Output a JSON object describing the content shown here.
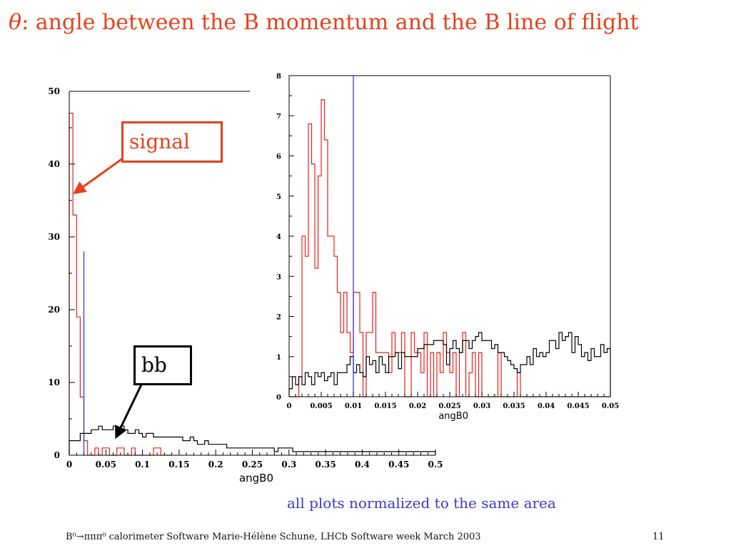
{
  "slide": {
    "title_symbol": "θ",
    "title_text": ": angle between the B momentum and the B line of flight",
    "callout_signal": "signal",
    "callout_bb": "bb",
    "note": "all plots normalized to the same area",
    "footer": "B⁰→πππ⁰ calorimeter Software Marie-Hélène Schune, LHCb Software week March 2003",
    "page_number": "11"
  },
  "colors": {
    "signal": "#e8201c",
    "background": "#000000",
    "cut": "#2a2ad8",
    "title": "#e8401c",
    "note": "#3a3ad0"
  },
  "chart_data": [
    {
      "type": "histogram",
      "xlabel": "angB0",
      "xlim": [
        0,
        0.5
      ],
      "ylim": [
        0,
        50
      ],
      "xticks": [
        "0",
        "0.05",
        "0.1",
        "0.15",
        "0.2",
        "0.25",
        "0.3",
        "0.35",
        "0.4",
        "0.45",
        "0.5"
      ],
      "yticks": [
        "0",
        "10",
        "20",
        "30",
        "40",
        "50"
      ],
      "cut_x": 0.02,
      "cut_top": 28,
      "bin_width": 0.005,
      "series": [
        {
          "name": "signal",
          "values": [
            47,
            33,
            19,
            8,
            2,
            0,
            0,
            1,
            0,
            1,
            1,
            0,
            0,
            1,
            1,
            0,
            0,
            1,
            0,
            0,
            0,
            0,
            0,
            1,
            1,
            0,
            0,
            0
          ]
        },
        {
          "name": "bb",
          "values": [
            2,
            2,
            2,
            3,
            3,
            3,
            3.5,
            3.5,
            4,
            3.5,
            3.5,
            3.5,
            4,
            3.5,
            4,
            3.5,
            3,
            3,
            3.5,
            3,
            2.5,
            3,
            3,
            2.5,
            2.5,
            2.5,
            2.5,
            2.5,
            2.5,
            2.5,
            2.5,
            2,
            2,
            2.5,
            2,
            1.5,
            1.5,
            2,
            1.5,
            1.5,
            1.5,
            1.5,
            1.5,
            1,
            1,
            1,
            1,
            1,
            1,
            1,
            1,
            1,
            1,
            1,
            1,
            1,
            0.5,
            1,
            1,
            1,
            1,
            0.5,
            0.5,
            0.5,
            0.5,
            0.5,
            0.5,
            0.5,
            0.5,
            0.5,
            0.5,
            0.5,
            0.5,
            0.5,
            0.5,
            0.5,
            0.5,
            0.5,
            0.5,
            0.5,
            0.5,
            0.5,
            0.5,
            0.5,
            0.5,
            0.5,
            0.5,
            0.5,
            0.5,
            0.5,
            0.5,
            0.5,
            0.5,
            0.5,
            0.5,
            0.5,
            0.5,
            0.5,
            0.5,
            0.5
          ]
        }
      ]
    },
    {
      "type": "histogram",
      "xlabel": "angB0",
      "xlim": [
        0,
        0.05
      ],
      "ylim": [
        0,
        8
      ],
      "xticks": [
        "0",
        "0.005",
        "0.01",
        "0.015",
        "0.02",
        "0.025",
        "0.03",
        "0.035",
        "0.04",
        "0.045",
        "0.05"
      ],
      "yticks": [
        "0",
        "1",
        "2",
        "3",
        "4",
        "5",
        "6",
        "7",
        "8"
      ],
      "cut_x": 0.01,
      "bin_width": 0.0005,
      "series": [
        {
          "name": "signal",
          "values": [
            0,
            0,
            0,
            0.5,
            4,
            3.5,
            6.8,
            5.8,
            3.2,
            5.5,
            7.4,
            6.4,
            4,
            4,
            3.5,
            2.6,
            1.6,
            2.6,
            1.6,
            1.1,
            2.6,
            2.6,
            1.6,
            0,
            1.6,
            1.6,
            2.6,
            1.1,
            1.1,
            1.1,
            1.1,
            0.6,
            1.6,
            1.1,
            1.1,
            1.6,
            0,
            0,
            1.6,
            1.1,
            1.1,
            0.6,
            1.6,
            0,
            1.1,
            0,
            1.1,
            0.6,
            1.6,
            1.1,
            0.6,
            1.1,
            0,
            1.1,
            1.6,
            0,
            0.6,
            1.1,
            0,
            1.1,
            0,
            0,
            0,
            0,
            0,
            1.1,
            0,
            0,
            0,
            0,
            0,
            0.6,
            0,
            0,
            0,
            0,
            0,
            0,
            0,
            0,
            0,
            0,
            0,
            0,
            0,
            0,
            0,
            0,
            0,
            0,
            0,
            0,
            0,
            0,
            0,
            0,
            0,
            0,
            0,
            0
          ]
        },
        {
          "name": "bb",
          "values": [
            0.2,
            0.5,
            0.3,
            0.5,
            0.3,
            0.6,
            0.5,
            0.3,
            0.6,
            0.5,
            0.6,
            0.4,
            0.5,
            0.6,
            0.3,
            0.6,
            0.6,
            0.6,
            0.8,
            1.0,
            0.6,
            0.8,
            0.6,
            0.5,
            1.0,
            0.8,
            0.9,
            0.6,
            1.0,
            0.8,
            0.6,
            1.0,
            1.0,
            1.1,
            0.7,
            1.1,
            1.0,
            1.0,
            1.0,
            1.0,
            1.2,
            1.2,
            1.3,
            1.3,
            1.3,
            1.4,
            1.4,
            1.4,
            1.3,
            0.8,
            1.2,
            1.4,
            1.2,
            1.1,
            1.4,
            1.4,
            1.2,
            1.4,
            1.5,
            1.6,
            1.4,
            1.4,
            1.4,
            1.2,
            1.3,
            1.1,
            1.1,
            1.0,
            0.9,
            0.8,
            0.7,
            0.6,
            0.8,
            0.8,
            1.0,
            0.8,
            1.2,
            1.0,
            1.1,
            1.0,
            1.1,
            1.4,
            1.4,
            1.2,
            1.6,
            1.4,
            1.5,
            1.6,
            1.1,
            1.5,
            1.3,
            1.0,
            1.1,
            0.9,
            1.2,
            1.0,
            1.0,
            1.3,
            1.1,
            1.2
          ]
        }
      ]
    }
  ]
}
